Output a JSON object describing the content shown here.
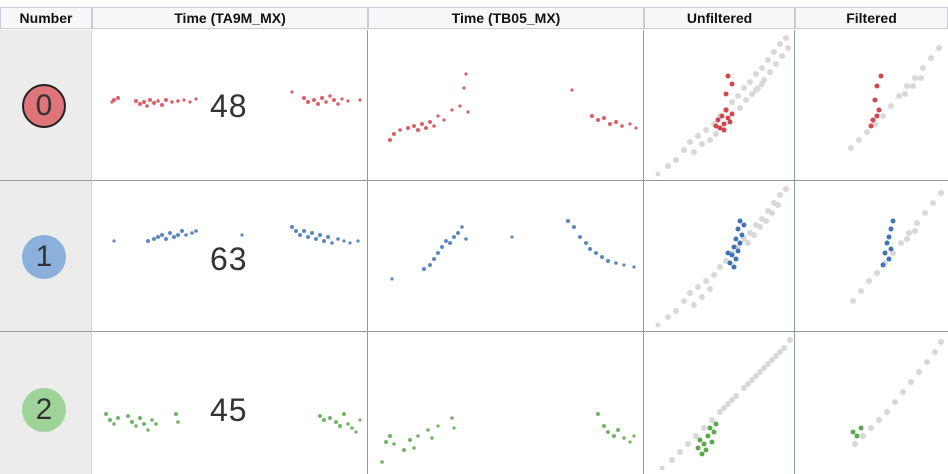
{
  "headers": {
    "number": "Number",
    "time_ta9m": "Time (TA9M_MX)",
    "time_tb05": "Time (TB05_MX)",
    "unfiltered": "Unfiltered",
    "filtered": "Filtered"
  },
  "rows": [
    {
      "number": "0",
      "count": "48",
      "color": "#d6444c",
      "circle_fill": "#e0747b",
      "circle_border": "#222222"
    },
    {
      "number": "1",
      "count": "63",
      "color": "#3f73b6",
      "circle_fill": "#8ab0db",
      "circle_border": "#8ab0db"
    },
    {
      "number": "2",
      "count": "45",
      "color": "#5aa84a",
      "circle_fill": "#9ed49a",
      "circle_border": "#9ed49a"
    }
  ]
}
